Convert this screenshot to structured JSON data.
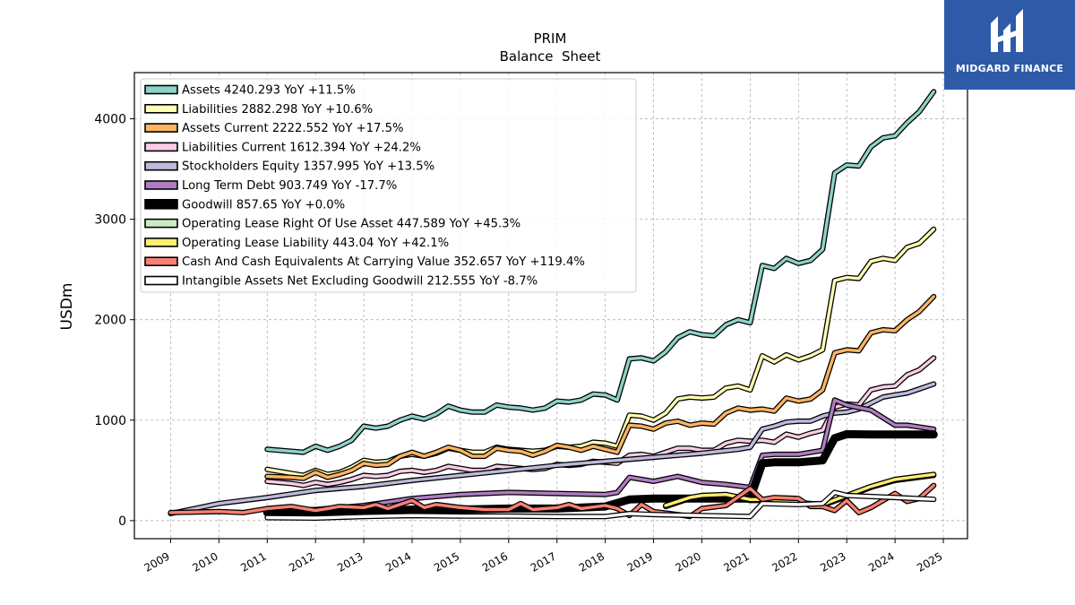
{
  "brand": {
    "name": "MIDGARD FINANCE",
    "bg_color": "#2f5aa8"
  },
  "chart_data": {
    "type": "line",
    "title": "PRIM",
    "subtitle": "Balance  Sheet",
    "xlabel": "",
    "ylabel": "USDm",
    "xlim": [
      2008.25,
      2025.5
    ],
    "ylim": [
      -180,
      4460
    ],
    "x_ticks": [
      "2009",
      "2010",
      "2011",
      "2012",
      "2013",
      "2014",
      "2015",
      "2016",
      "2017",
      "2018",
      "2019",
      "2020",
      "2021",
      "2022",
      "2023",
      "2024",
      "2025"
    ],
    "y_ticks": [
      0,
      1000,
      2000,
      3000,
      4000
    ],
    "grid": true,
    "legend_position": "top-left",
    "series": [
      {
        "name": "Assets",
        "legend": "Assets  4240.293 YoY +11.5%",
        "color": "#8dd3c7",
        "x": [
          2011,
          2011.5,
          2011.75,
          2012,
          2012.25,
          2012.5,
          2012.75,
          2013,
          2013.25,
          2013.5,
          2013.75,
          2014,
          2014.25,
          2014.5,
          2014.75,
          2015,
          2015.25,
          2015.5,
          2015.75,
          2016,
          2016.25,
          2016.5,
          2016.75,
          2017,
          2017.25,
          2017.5,
          2017.75,
          2018,
          2018.25,
          2018.5,
          2018.75,
          2019,
          2019.25,
          2019.5,
          2019.75,
          2020,
          2020.25,
          2020.5,
          2020.75,
          2021,
          2021.25,
          2021.5,
          2021.75,
          2022,
          2022.25,
          2022.5,
          2022.75,
          2023,
          2023.25,
          2023.5,
          2023.75,
          2024,
          2024.25,
          2024.5,
          2024.8
        ],
        "values": [
          710,
          690,
          680,
          740,
          700,
          740,
          800,
          940,
          920,
          940,
          1000,
          1040,
          1010,
          1060,
          1140,
          1100,
          1080,
          1080,
          1150,
          1130,
          1120,
          1100,
          1120,
          1190,
          1180,
          1200,
          1260,
          1250,
          1200,
          1610,
          1620,
          1590,
          1680,
          1820,
          1880,
          1850,
          1840,
          1950,
          2000,
          1970,
          2540,
          2510,
          2610,
          2560,
          2590,
          2700,
          3460,
          3540,
          3530,
          3720,
          3810,
          3830,
          3960,
          4070,
          4270
        ]
      },
      {
        "name": "Liabilities",
        "legend": "Liabilities  2882.298 YoY +10.6%",
        "color": "#ffffb3",
        "x": [
          2011,
          2011.5,
          2011.75,
          2012,
          2012.25,
          2012.5,
          2012.75,
          2013,
          2013.25,
          2013.5,
          2013.75,
          2014,
          2014.25,
          2014.5,
          2014.75,
          2015,
          2015.25,
          2015.5,
          2015.75,
          2016,
          2016.25,
          2016.5,
          2016.75,
          2017,
          2017.25,
          2017.5,
          2017.75,
          2018,
          2018.25,
          2018.5,
          2018.75,
          2019,
          2019.25,
          2019.5,
          2019.75,
          2020,
          2020.25,
          2020.5,
          2020.75,
          2021,
          2021.25,
          2021.5,
          2021.75,
          2022,
          2022.25,
          2022.5,
          2022.75,
          2023,
          2023.25,
          2023.5,
          2023.75,
          2024,
          2024.25,
          2024.5,
          2024.8
        ],
        "values": [
          510,
          470,
          450,
          500,
          460,
          480,
          530,
          600,
          580,
          590,
          640,
          660,
          640,
          670,
          720,
          700,
          680,
          680,
          730,
          710,
          700,
          690,
          700,
          740,
          730,
          740,
          780,
          770,
          740,
          1050,
          1040,
          1000,
          1070,
          1210,
          1230,
          1220,
          1230,
          1320,
          1340,
          1300,
          1640,
          1580,
          1650,
          1600,
          1640,
          1700,
          2390,
          2420,
          2410,
          2580,
          2610,
          2590,
          2720,
          2760,
          2900
        ]
      },
      {
        "name": "Assets Current",
        "legend": "Assets Current  2222.552 YoY +17.5%",
        "color": "#fdb462",
        "x": [
          2011,
          2011.5,
          2011.75,
          2012,
          2012.25,
          2012.5,
          2012.75,
          2013,
          2013.25,
          2013.5,
          2013.75,
          2014,
          2014.25,
          2014.5,
          2014.75,
          2015,
          2015.25,
          2015.5,
          2015.75,
          2016,
          2016.25,
          2016.5,
          2016.75,
          2017,
          2017.25,
          2017.5,
          2017.75,
          2018,
          2018.25,
          2018.5,
          2018.75,
          2019,
          2019.25,
          2019.5,
          2019.75,
          2020,
          2020.25,
          2020.5,
          2020.75,
          2021,
          2021.25,
          2021.5,
          2021.75,
          2022,
          2022.25,
          2022.5,
          2022.75,
          2023,
          2023.25,
          2023.5,
          2023.75,
          2024,
          2024.25,
          2024.5,
          2024.8
        ],
        "values": [
          440,
          430,
          420,
          480,
          430,
          460,
          500,
          570,
          550,
          560,
          640,
          680,
          640,
          680,
          730,
          700,
          640,
          640,
          720,
          700,
          690,
          650,
          690,
          750,
          730,
          700,
          740,
          710,
          680,
          950,
          940,
          910,
          970,
          990,
          950,
          970,
          960,
          1070,
          1120,
          1100,
          1110,
          1090,
          1220,
          1190,
          1210,
          1300,
          1670,
          1700,
          1690,
          1870,
          1900,
          1890,
          2000,
          2080,
          2230
        ]
      },
      {
        "name": "Liabilities Current",
        "legend": "Liabilities Current  1612.394 YoY +24.2%",
        "color": "#fccde5",
        "x": [
          2011,
          2011.5,
          2011.75,
          2012,
          2012.25,
          2012.5,
          2012.75,
          2013,
          2013.25,
          2013.5,
          2013.75,
          2014,
          2014.25,
          2014.5,
          2014.75,
          2015,
          2015.25,
          2015.5,
          2015.75,
          2016,
          2016.25,
          2016.5,
          2016.75,
          2017,
          2017.25,
          2017.5,
          2017.75,
          2018,
          2018.25,
          2018.5,
          2018.75,
          2019,
          2019.25,
          2019.5,
          2019.75,
          2020,
          2020.25,
          2020.5,
          2020.75,
          2021,
          2021.25,
          2021.5,
          2021.75,
          2022,
          2022.25,
          2022.5,
          2022.75,
          2023,
          2023.25,
          2023.5,
          2023.75,
          2024,
          2024.25,
          2024.5,
          2024.8
        ],
        "values": [
          390,
          370,
          350,
          380,
          360,
          380,
          410,
          450,
          440,
          450,
          490,
          500,
          480,
          500,
          540,
          520,
          500,
          500,
          540,
          530,
          520,
          510,
          520,
          560,
          550,
          560,
          590,
          580,
          570,
          650,
          660,
          640,
          680,
          720,
          720,
          700,
          700,
          770,
          800,
          790,
          800,
          780,
          860,
          830,
          870,
          900,
          1130,
          1160,
          1150,
          1300,
          1330,
          1340,
          1450,
          1500,
          1620
        ]
      },
      {
        "name": "Stockholders Equity",
        "legend": "Stockholders Equity  1357.995 YoY +13.5%",
        "color": "#bebada",
        "x": [
          2009,
          2010,
          2011,
          2012,
          2013,
          2014,
          2015,
          2016,
          2017,
          2018,
          2019,
          2020,
          2020.75,
          2021,
          2021.25,
          2021.5,
          2021.75,
          2022,
          2022.25,
          2022.5,
          2022.75,
          2023,
          2023.25,
          2023.5,
          2023.75,
          2024,
          2024.25,
          2024.5,
          2024.8
        ],
        "values": [
          70,
          170,
          230,
          300,
          340,
          400,
          450,
          500,
          550,
          590,
          630,
          670,
          710,
          730,
          910,
          940,
          980,
          990,
          990,
          1040,
          1070,
          1080,
          1110,
          1170,
          1230,
          1250,
          1270,
          1310,
          1360
        ]
      },
      {
        "name": "Long Term Debt",
        "legend": "Long Term Debt  903.749 YoY -17.7%",
        "color": "#b07cc0",
        "x": [
          2011,
          2012,
          2013,
          2014,
          2015,
          2016,
          2017,
          2018,
          2018.25,
          2018.5,
          2019,
          2019.5,
          2020,
          2020.5,
          2021,
          2021.25,
          2021.5,
          2022,
          2022.5,
          2022.75,
          2023,
          2023.5,
          2024,
          2024.25,
          2024.8
        ],
        "values": [
          110,
          110,
          150,
          220,
          260,
          280,
          270,
          260,
          280,
          430,
          390,
          440,
          380,
          360,
          330,
          650,
          660,
          660,
          700,
          1200,
          1150,
          1100,
          950,
          950,
          910
        ]
      },
      {
        "name": "Goodwill",
        "legend": "Goodwill  857.65 YoY +0.0%",
        "color": "#000000",
        "x": [
          2011,
          2012,
          2013,
          2014,
          2015,
          2016,
          2017,
          2018,
          2018.5,
          2019,
          2020,
          2020.5,
          2021,
          2021.25,
          2021.5,
          2022,
          2022.5,
          2022.75,
          2023,
          2023.5,
          2024,
          2024.8
        ],
        "values": [
          80,
          80,
          90,
          110,
          110,
          120,
          120,
          140,
          210,
          220,
          220,
          220,
          220,
          570,
          580,
          580,
          600,
          820,
          860,
          857,
          857,
          857
        ]
      },
      {
        "name": "Operating Lease Right Of Use Asset",
        "legend": "Operating Lease Right Of Use Asset  447.589 YoY +45.3%",
        "color": "#ccebc5",
        "x": [
          2019.25,
          2019.75,
          2020,
          2020.5,
          2021,
          2021.25,
          2022,
          2022.5,
          2023,
          2023.5,
          2024,
          2024.8
        ],
        "values": [
          140,
          220,
          240,
          250,
          200,
          200,
          170,
          150,
          240,
          330,
          400,
          450
        ]
      },
      {
        "name": "Operating Lease Liability",
        "legend": "Operating Lease Liability  443.04 YoY +42.1%",
        "color": "#ffed6f",
        "x": [
          2019.25,
          2019.75,
          2020,
          2020.5,
          2021,
          2021.25,
          2022,
          2022.5,
          2023,
          2023.5,
          2024,
          2024.8
        ],
        "values": [
          150,
          230,
          250,
          260,
          210,
          210,
          180,
          160,
          250,
          340,
          410,
          460
        ]
      },
      {
        "name": "Cash And Cash Equivalents At Carrying Value",
        "legend": "Cash And Cash Equivalents At Carrying Value  352.657 YoY +119.4%",
        "color": "#fb8072",
        "x": [
          2009,
          2010,
          2010.5,
          2011,
          2011.5,
          2012,
          2012.25,
          2012.5,
          2013,
          2013.25,
          2013.5,
          2014,
          2014.25,
          2014.5,
          2015,
          2015.5,
          2016,
          2016.25,
          2016.5,
          2017,
          2017.25,
          2017.5,
          2018,
          2018.25,
          2018.5,
          2018.75,
          2019,
          2019.5,
          2019.75,
          2020,
          2020.5,
          2021,
          2021.25,
          2021.5,
          2022,
          2022.25,
          2022.5,
          2022.75,
          2023,
          2023.25,
          2023.5,
          2024,
          2024.25,
          2024.5,
          2024.8
        ],
        "values": [
          80,
          90,
          80,
          120,
          140,
          100,
          120,
          140,
          130,
          160,
          120,
          200,
          130,
          160,
          130,
          110,
          110,
          170,
          110,
          130,
          160,
          120,
          150,
          120,
          50,
          160,
          90,
          60,
          40,
          120,
          150,
          320,
          210,
          230,
          220,
          140,
          140,
          100,
          200,
          80,
          130,
          270,
          190,
          220,
          350
        ]
      },
      {
        "name": "Intangible Assets Net Excluding Goodwill",
        "legend": "Intangible Assets Net Excluding Goodwill  212.555 YoY -8.7%",
        "color": "#ffffff",
        "x": [
          2011,
          2012,
          2013,
          2014,
          2015,
          2016,
          2017,
          2018,
          2018.5,
          2019,
          2020,
          2021,
          2021.25,
          2022,
          2022.5,
          2022.75,
          2023,
          2024,
          2024.8
        ],
        "values": [
          30,
          25,
          40,
          50,
          45,
          45,
          40,
          40,
          70,
          60,
          50,
          40,
          170,
          160,
          170,
          280,
          250,
          230,
          212
        ]
      }
    ]
  }
}
